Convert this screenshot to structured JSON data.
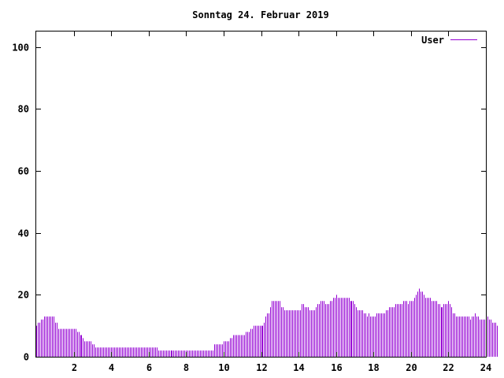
{
  "chart_data": {
    "type": "bar",
    "title": "Sonntag 24. Februar 2019",
    "xlabel": "",
    "ylabel": "",
    "xlim": [
      0,
      24
    ],
    "ylim": [
      0,
      105
    ],
    "x_ticks": [
      2,
      4,
      6,
      8,
      10,
      12,
      14,
      16,
      18,
      20,
      22,
      24
    ],
    "x_tick_labels": [
      "2",
      "4",
      "6",
      "8",
      "10",
      "12",
      "14",
      "16",
      "18",
      "20",
      "22",
      "24"
    ],
    "y_ticks": [
      0,
      20,
      40,
      60,
      80,
      100
    ],
    "y_tick_labels": [
      "0",
      "20",
      "40",
      "60",
      "80",
      "100"
    ],
    "grid": false,
    "legend_position": "top-right",
    "colors": {
      "series": "#9400d3",
      "axis": "#000000",
      "background": "#ffffff"
    },
    "series": [
      {
        "name": "User",
        "interval_minutes": 5,
        "values": [
          10,
          11,
          11,
          12,
          12,
          13,
          13,
          13,
          13,
          13,
          13,
          13,
          11,
          11,
          9,
          9,
          9,
          9,
          9,
          9,
          9,
          9,
          9,
          9,
          9,
          9,
          8,
          8,
          7,
          7,
          6,
          5,
          5,
          5,
          5,
          5,
          4,
          4,
          3,
          3,
          3,
          3,
          3,
          3,
          3,
          3,
          3,
          3,
          3,
          3,
          3,
          3,
          3,
          3,
          3,
          3,
          3,
          3,
          3,
          3,
          3,
          3,
          3,
          3,
          3,
          3,
          3,
          3,
          3,
          3,
          3,
          3,
          3,
          3,
          3,
          3,
          3,
          3,
          2,
          2,
          2,
          2,
          2,
          2,
          2,
          2,
          2,
          2,
          2,
          2,
          2,
          2,
          2,
          2,
          2,
          2,
          2,
          2,
          2,
          2,
          2,
          2,
          2,
          2,
          2,
          2,
          2,
          2,
          2,
          2,
          2,
          2,
          2,
          2,
          4,
          4,
          4,
          4,
          4,
          4,
          5,
          5,
          5,
          5,
          6,
          6,
          7,
          7,
          7,
          7,
          7,
          7,
          7,
          7,
          8,
          8,
          8,
          9,
          9,
          10,
          10,
          10,
          10,
          10,
          10,
          10,
          11,
          13,
          14,
          14,
          16,
          18,
          18,
          18,
          18,
          18,
          18,
          16,
          16,
          15,
          15,
          15,
          15,
          15,
          15,
          15,
          15,
          15,
          15,
          15,
          17,
          17,
          16,
          16,
          16,
          15,
          15,
          15,
          15,
          16,
          17,
          17,
          18,
          18,
          18,
          17,
          17,
          17,
          18,
          18,
          19,
          19,
          20,
          19,
          19,
          19,
          19,
          19,
          19,
          19,
          19,
          18,
          18,
          18,
          17,
          16,
          15,
          15,
          15,
          15,
          14,
          14,
          13,
          14,
          13,
          13,
          13,
          13,
          14,
          14,
          14,
          14,
          14,
          14,
          15,
          15,
          16,
          16,
          16,
          16,
          17,
          17,
          17,
          17,
          17,
          18,
          18,
          18,
          17,
          18,
          18,
          18,
          19,
          20,
          21,
          22,
          21,
          21,
          20,
          19,
          19,
          19,
          19,
          18,
          18,
          18,
          18,
          17,
          17,
          16,
          16,
          17,
          17,
          17,
          18,
          17,
          16,
          14,
          14,
          13,
          13,
          13,
          13,
          13,
          13,
          13,
          13,
          13,
          12,
          13,
          13,
          14,
          13,
          13,
          12,
          12,
          12,
          12,
          12,
          13,
          12,
          12,
          11,
          11,
          11,
          10
        ]
      }
    ]
  }
}
